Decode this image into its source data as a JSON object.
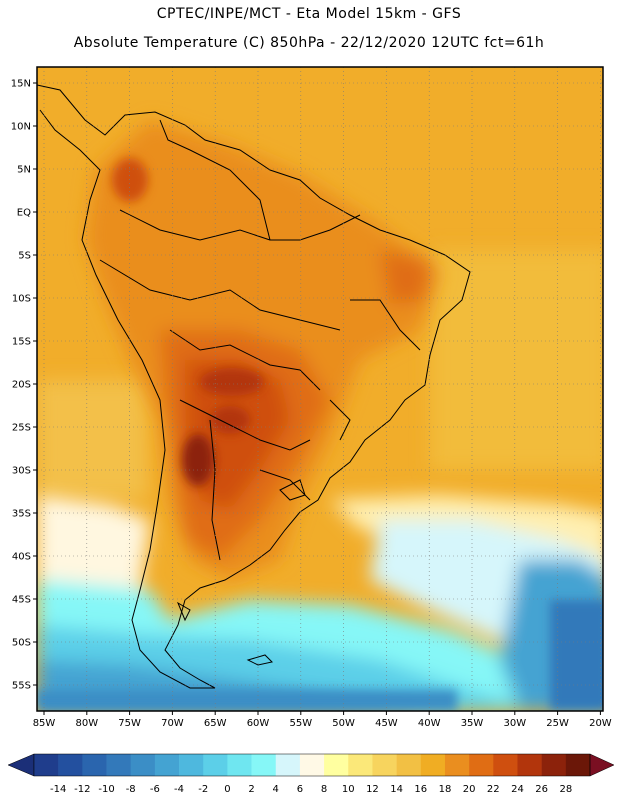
{
  "title_line1": "CPTEC/INPE/MCT  -   Eta Model 15km  -  GFS",
  "title_line2": "Absolute Temperature (C) 850hPa - 22/12/2020 12UTC fct=61h",
  "lat_labels": [
    "15N",
    "10N",
    "5N",
    "EQ",
    "5S",
    "10S",
    "15S",
    "20S",
    "25S",
    "30S",
    "35S",
    "40S",
    "45S",
    "50S",
    "55S"
  ],
  "lon_labels": [
    "85W",
    "80W",
    "75W",
    "70W",
    "65W",
    "60W",
    "55W",
    "50W",
    "45W",
    "40W",
    "35W",
    "30W",
    "25W",
    "20W"
  ],
  "colorbar": {
    "ticks": [
      "-14",
      "-12",
      "-10",
      "-8",
      "-6",
      "-4",
      "-2",
      "0",
      "2",
      "4",
      "6",
      "8",
      "10",
      "12",
      "14",
      "16",
      "18",
      "20",
      "22",
      "24",
      "26",
      "28"
    ],
    "colors": [
      "#1f3d8c",
      "#23509f",
      "#2a65ae",
      "#3379ba",
      "#3b8ec6",
      "#44a3d2",
      "#4eb8de",
      "#5ccfe8",
      "#6fe6f0",
      "#86f7f7",
      "#d6f6fb",
      "#fff9e6",
      "#ffffa0",
      "#fbe879",
      "#f7d45e",
      "#f2c044",
      "#f0ad23",
      "#ea8e1f",
      "#e06d14",
      "#cf4f0f",
      "#b2350c",
      "#8c220b",
      "#6b1708"
    ],
    "under_color": "#1b2f78",
    "over_color": "#7a0f22"
  }
}
